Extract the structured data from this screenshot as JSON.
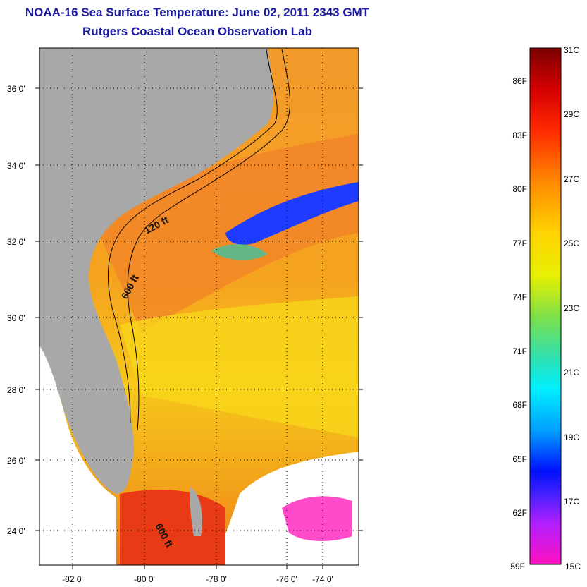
{
  "title": "NOAA-16 Sea Surface Temperature:  June 02, 2011 2343 GMT",
  "subtitle": "Rutgers Coastal Ocean Observation Lab",
  "map": {
    "lat_labels": [
      "36 0'",
      "34 0'",
      "32 0'",
      "30 0'",
      "28 0'",
      "26 0'",
      "24 0'"
    ],
    "lon_labels": [
      "-82 0'",
      "-80 0'",
      "-78 0'",
      "-76 0'",
      "-74 0'"
    ],
    "contour_labels": [
      "120 ft",
      "600 ft",
      "600 ft"
    ],
    "colors": {
      "land": "#a8a8a8",
      "no_data": "#ffffff",
      "warm_water": "#f5a623",
      "cold_filament": "#1e3cff"
    }
  },
  "colorbar": {
    "celsius": [
      "31C",
      "29C",
      "27C",
      "25C",
      "23C",
      "21C",
      "19C",
      "17C",
      "15C"
    ],
    "fahrenheit": [
      "86F",
      "83F",
      "80F",
      "77F",
      "74F",
      "71F",
      "68F",
      "65F",
      "62F",
      "59F"
    ],
    "min_c": 15,
    "max_c": 31
  }
}
